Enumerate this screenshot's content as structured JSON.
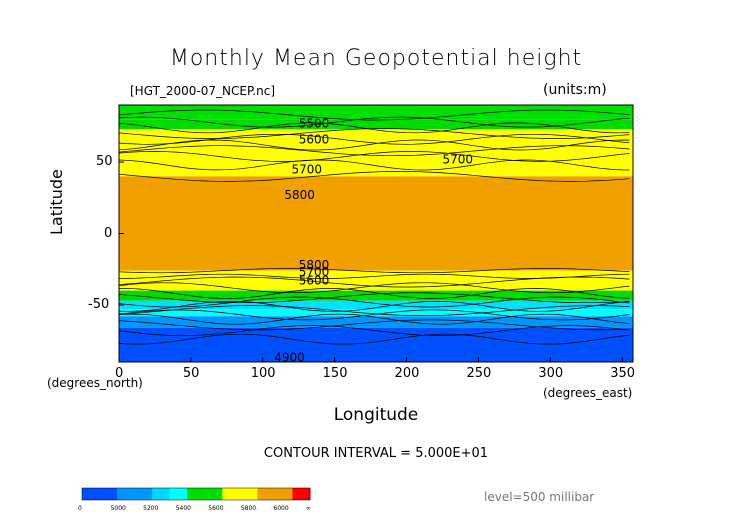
{
  "chart_data": {
    "type": "heatmap",
    "title": "Monthly Mean Geopotential height",
    "subtitle_left": "[HGT_2000-07_NCEP.nc]",
    "subtitle_right": "(units:m)",
    "xlabel": "Longitude",
    "ylabel": "Latitude",
    "x_unit_label": "(degrees_east)",
    "y_unit_label": "(degrees_north)",
    "xlim": [
      0,
      357.5
    ],
    "ylim": [
      -90,
      90
    ],
    "xticks": [
      0,
      50,
      100,
      150,
      200,
      250,
      300,
      350
    ],
    "yticks": [
      50,
      0,
      -50
    ],
    "contour_interval_label": "CONTOUR INTERVAL = 5.000E+01",
    "level_label": "level=500 millibar",
    "contour_labels": [
      "5500",
      "5600",
      "5700",
      "5800",
      "5800",
      "5700",
      "5600",
      "4900"
    ],
    "colorbar": {
      "tick_labels": [
        "0",
        "5000",
        "5200",
        "5400",
        "5600",
        "5800",
        "6000",
        "∞"
      ],
      "bins": [
        {
          "lo": 0,
          "hi": 4900,
          "color": "#0050ff"
        },
        {
          "lo": 4900,
          "hi": 5000,
          "color": "#0050ff"
        },
        {
          "lo": 5000,
          "hi": 5100,
          "color": "#0096ff"
        },
        {
          "lo": 5100,
          "hi": 5200,
          "color": "#0096ff"
        },
        {
          "lo": 5200,
          "hi": 5300,
          "color": "#00d8ff"
        },
        {
          "lo": 5300,
          "hi": 5400,
          "color": "#00ffff"
        },
        {
          "lo": 5400,
          "hi": 5500,
          "color": "#00dc00"
        },
        {
          "lo": 5500,
          "hi": 5600,
          "color": "#00e000"
        },
        {
          "lo": 5600,
          "hi": 5700,
          "color": "#ffff00"
        },
        {
          "lo": 5700,
          "hi": 5800,
          "color": "#ffff00"
        },
        {
          "lo": 5800,
          "hi": 5900,
          "color": "#f0a000"
        },
        {
          "lo": 5900,
          "hi": 6000,
          "color": "#f0a000"
        },
        {
          "lo": 6000,
          "hi": 9999,
          "color": "#ff0000"
        }
      ]
    },
    "zonal_bands": [
      {
        "lat_from": 90,
        "lat_to": 80,
        "value": 5450,
        "color": "#00e000"
      },
      {
        "lat_from": 80,
        "lat_to": 73,
        "value": 5520,
        "color": "#00dc00"
      },
      {
        "lat_from": 73,
        "lat_to": 62,
        "value": 5650,
        "color": "#ffff00"
      },
      {
        "lat_from": 62,
        "lat_to": 40,
        "value": 5750,
        "color": "#ffff00"
      },
      {
        "lat_from": 40,
        "lat_to": -26,
        "value": 5870,
        "color": "#f0a000"
      },
      {
        "lat_from": -26,
        "lat_to": -40,
        "value": 5720,
        "color": "#ffff00"
      },
      {
        "lat_from": -40,
        "lat_to": -47,
        "value": 5500,
        "color": "#00dc00"
      },
      {
        "lat_from": -47,
        "lat_to": -53,
        "value": 5400,
        "color": "#00e0ff"
      },
      {
        "lat_from": -53,
        "lat_to": -58,
        "value": 5300,
        "color": "#00ffff"
      },
      {
        "lat_from": -58,
        "lat_to": -66,
        "value": 5150,
        "color": "#0096ff"
      },
      {
        "lat_from": -66,
        "lat_to": -90,
        "value": 4950,
        "color": "#0050ff"
      }
    ]
  }
}
